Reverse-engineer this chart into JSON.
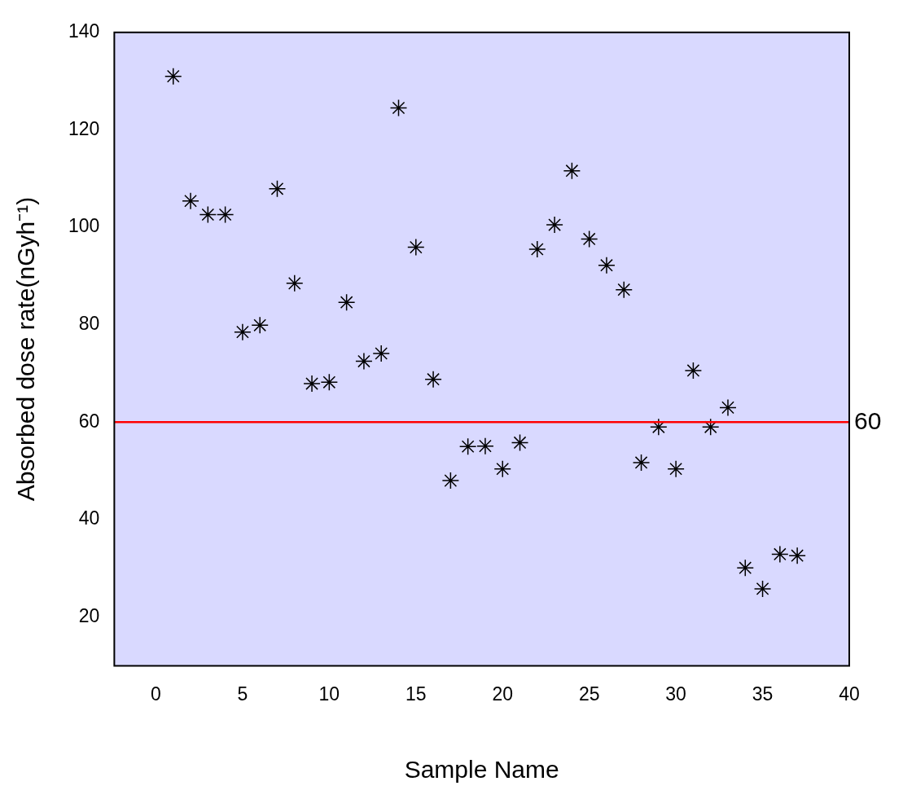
{
  "chart_data": {
    "type": "scatter",
    "xlabel": "Sample Name",
    "ylabel": "Absorbed dose rate(nGyh⁻¹)",
    "x": [
      1,
      2,
      3,
      4,
      5,
      6,
      7,
      8,
      9,
      10,
      11,
      12,
      13,
      14,
      15,
      16,
      17,
      18,
      19,
      20,
      21,
      22,
      23,
      24,
      25,
      26,
      27,
      28,
      29,
      30,
      31,
      32,
      33,
      34,
      35,
      36,
      37
    ],
    "series": [
      {
        "color": "#000000",
        "values": [
          131.0,
          105.4,
          102.6,
          102.6,
          78.5,
          79.9,
          107.9,
          88.5,
          67.9,
          68.2,
          84.6,
          72.5,
          74.1,
          124.5,
          95.9,
          68.8,
          48.0,
          55.0,
          55.1,
          50.4,
          55.8,
          95.5,
          100.5,
          111.6,
          97.6,
          92.2,
          87.2,
          51.7,
          59.0,
          50.4,
          70.6,
          59.0,
          63.0,
          30.1,
          25.8,
          32.9,
          32.6
        ]
      }
    ],
    "xlim": [
      -2.4,
      40
    ],
    "xticks": [
      0,
      5,
      10,
      15,
      20,
      25,
      30,
      35,
      40
    ],
    "ylim": [
      10,
      140
    ],
    "yticks": [
      20,
      40,
      60,
      80,
      100,
      120,
      140
    ],
    "ref_lines": [
      {
        "axis": "y",
        "value": 60,
        "label": "60",
        "color": "#ff0000"
      }
    ],
    "marker": "cross",
    "grid": false,
    "legend": false
  }
}
